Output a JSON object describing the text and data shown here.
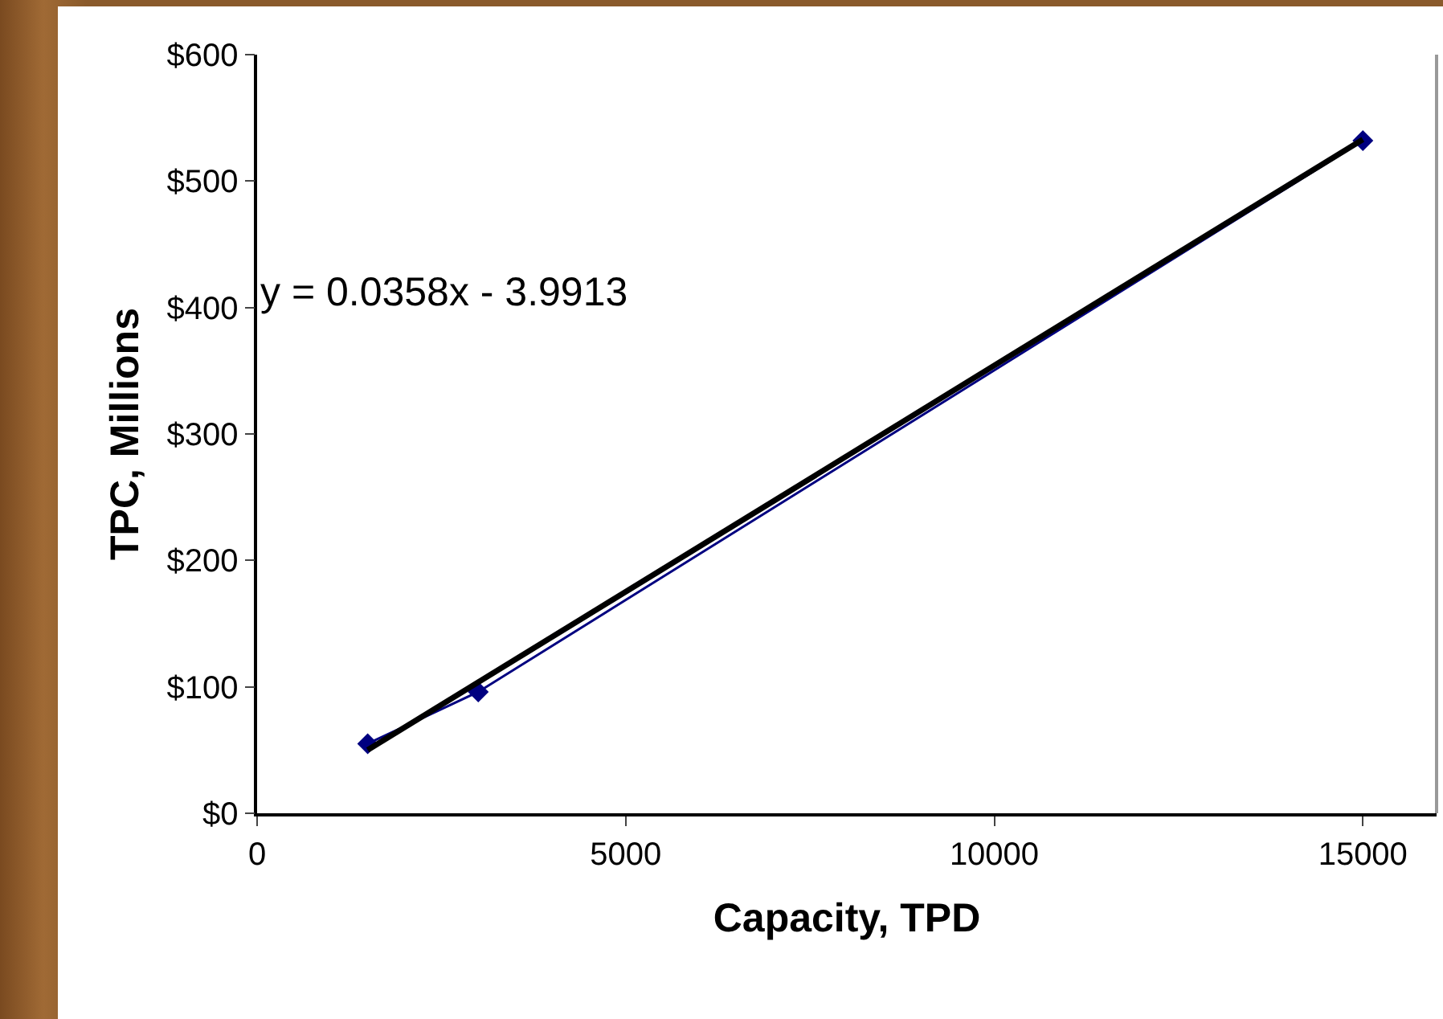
{
  "chart_data": {
    "type": "line",
    "xlabel": "Capacity, TPD",
    "ylabel": "TPC, Millions",
    "x": [
      1500,
      3000,
      15000
    ],
    "series": [
      {
        "color": "#000080",
        "values": [
          55,
          96,
          532
        ],
        "marker": "diamond"
      },
      {
        "type": "line",
        "color": "#000000",
        "x": [
          1500,
          15000
        ],
        "values": [
          50,
          533
        ],
        "marker": "none"
      }
    ],
    "annotations": [
      "y = 0.0358x - 3.9913"
    ],
    "xlim": [
      0,
      16000
    ],
    "xticks": [
      0,
      5000,
      10000,
      15000
    ],
    "ylim": [
      0,
      600
    ],
    "yticks": [
      {
        "value": 0,
        "label": "$0"
      },
      {
        "value": 100,
        "label": "$100"
      },
      {
        "value": 200,
        "label": "$200"
      },
      {
        "value": 300,
        "label": "$300"
      },
      {
        "value": 400,
        "label": "$400"
      },
      {
        "value": 500,
        "label": "$500"
      },
      {
        "value": 600,
        "label": "$600"
      }
    ],
    "grid": false
  }
}
